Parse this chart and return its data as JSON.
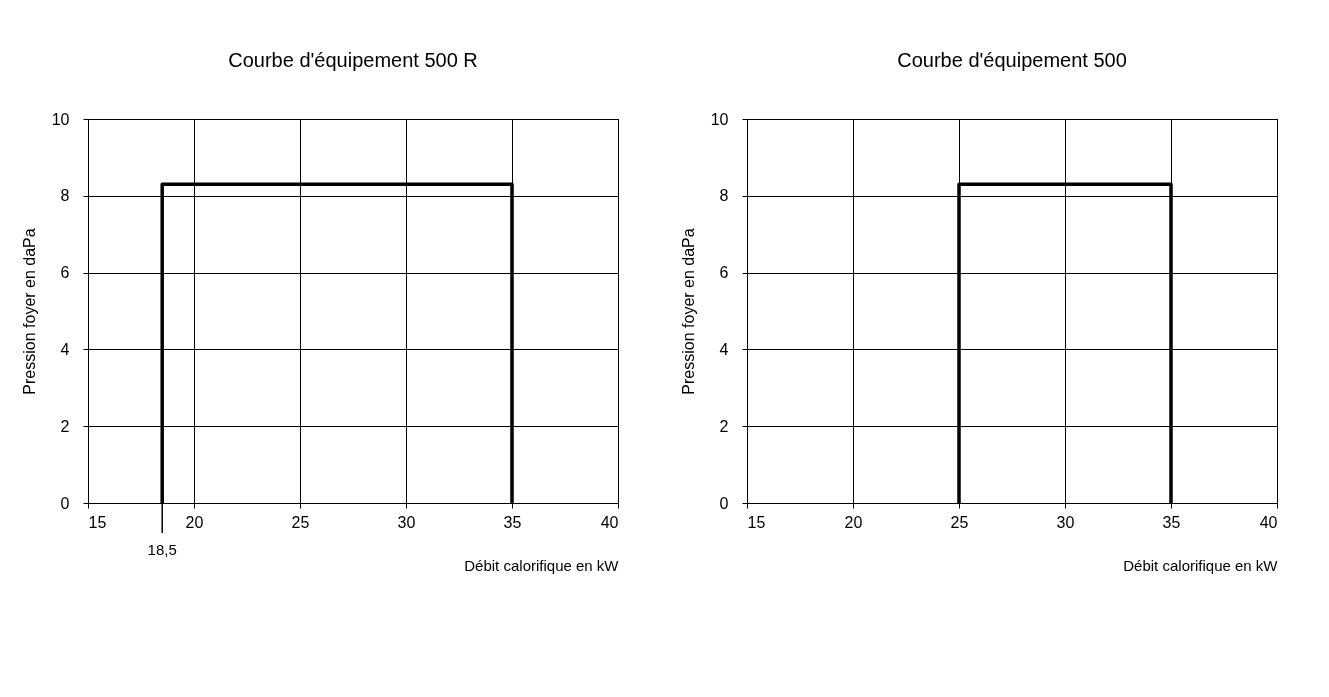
{
  "chart_data": [
    {
      "type": "line",
      "title": "Courbe d'équipement 500 R",
      "xlabel": "Débit calorifique en kW",
      "ylabel": "Pression foyer en daPa",
      "x": [
        18.5,
        18.5,
        35,
        35
      ],
      "values": [
        0,
        8.3,
        8.3,
        0
      ],
      "color": "#000000",
      "xlim": [
        15,
        40
      ],
      "xticks": [
        15,
        20,
        25,
        30,
        35,
        40
      ],
      "ylim": [
        0,
        10
      ],
      "yticks": [
        0,
        2,
        4,
        6,
        8,
        10
      ],
      "grid": true,
      "annotations": [
        {
          "text": "18,5",
          "x": 18.5,
          "y": 0
        }
      ]
    },
    {
      "type": "line",
      "title": "Courbe d'équipement 500",
      "xlabel": "Débit calorifique en kW",
      "ylabel": "Pression foyer en daPa",
      "x": [
        25,
        25,
        35,
        35
      ],
      "values": [
        0,
        8.3,
        8.3,
        0
      ],
      "color": "#000000",
      "xlim": [
        15,
        40
      ],
      "xticks": [
        15,
        20,
        25,
        30,
        35,
        40
      ],
      "ylim": [
        0,
        10
      ],
      "yticks": [
        0,
        2,
        4,
        6,
        8,
        10
      ],
      "grid": true
    }
  ]
}
